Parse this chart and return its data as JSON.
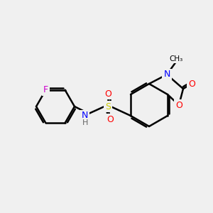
{
  "background_color": "#f0f0f0",
  "bond_color": "#000000",
  "atom_colors": {
    "N": "#0000ff",
    "O": "#ff0000",
    "S": "#cccc00",
    "F": "#cc00cc",
    "H": "#666666",
    "C": "#000000"
  },
  "title": "",
  "figsize": [
    3.0,
    3.0
  ],
  "dpi": 100
}
